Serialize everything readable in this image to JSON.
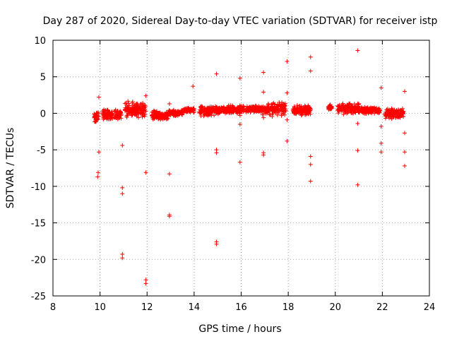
{
  "chart_data": {
    "type": "scatter",
    "title": "Day 287 of 2020, Sidereal Day-to-day VTEC variation (SDTVAR) for receiver istp",
    "xlabel": "GPS time / hours",
    "ylabel": "SDTVAR / TECUs",
    "xlim": [
      8,
      24
    ],
    "ylim": [
      -25,
      10
    ],
    "xticks": [
      8,
      10,
      12,
      14,
      16,
      18,
      20,
      22,
      24
    ],
    "yticks": [
      -25,
      -20,
      -15,
      -10,
      -5,
      0,
      5,
      10
    ],
    "xtick_labels": [
      "8",
      "10",
      "12",
      "14",
      "16",
      "18",
      "20",
      "22",
      "24"
    ],
    "ytick_labels": [
      "-25",
      "-20",
      "-15",
      "-10",
      "-5",
      "0",
      "5",
      "10"
    ],
    "grid": true,
    "marker": "plus",
    "color": "#ff0000",
    "clusters": [
      {
        "x0": 9.75,
        "x1": 9.95,
        "ymin": -1.2,
        "ymax": 0.2
      },
      {
        "x0": 10.1,
        "x1": 10.9,
        "ymin": -1.0,
        "ymax": 0.6
      },
      {
        "x0": 11.05,
        "x1": 11.95,
        "ymin": -0.6,
        "ymax": 1.8
      },
      {
        "x0": 12.2,
        "x1": 12.9,
        "ymin": -1.0,
        "ymax": 0.5
      },
      {
        "x0": 12.9,
        "x1": 13.5,
        "ymin": -0.4,
        "ymax": 0.5
      },
      {
        "x0": 13.5,
        "x1": 14.0,
        "ymin": 0.1,
        "ymax": 0.8
      },
      {
        "x0": 14.2,
        "x1": 15.1,
        "ymin": -0.4,
        "ymax": 1.0
      },
      {
        "x0": 15.1,
        "x1": 16.1,
        "ymin": -0.1,
        "ymax": 1.2
      },
      {
        "x0": 16.2,
        "x1": 16.9,
        "ymin": 0.0,
        "ymax": 1.1
      },
      {
        "x0": 16.9,
        "x1": 17.1,
        "ymin": -0.3,
        "ymax": 1.0
      },
      {
        "x0": 17.1,
        "x1": 17.9,
        "ymin": -0.5,
        "ymax": 1.6
      },
      {
        "x0": 18.2,
        "x1": 18.95,
        "ymin": -0.5,
        "ymax": 1.2
      },
      {
        "x0": 19.7,
        "x1": 19.85,
        "ymin": 0.2,
        "ymax": 1.3
      },
      {
        "x0": 20.1,
        "x1": 21.0,
        "ymin": -0.2,
        "ymax": 1.4
      },
      {
        "x0": 21.0,
        "x1": 21.9,
        "ymin": -0.1,
        "ymax": 0.9
      },
      {
        "x0": 22.1,
        "x1": 22.9,
        "ymin": -0.8,
        "ymax": 0.8
      }
    ],
    "points": [
      {
        "x": 9.95,
        "y": 2.2
      },
      {
        "x": 9.95,
        "y": -5.3
      },
      {
        "x": 9.92,
        "y": -8.1
      },
      {
        "x": 9.9,
        "y": -8.7
      },
      {
        "x": 10.95,
        "y": -4.4
      },
      {
        "x": 10.95,
        "y": -10.2
      },
      {
        "x": 10.95,
        "y": -11.0
      },
      {
        "x": 10.95,
        "y": -19.3
      },
      {
        "x": 10.95,
        "y": -19.8
      },
      {
        "x": 11.95,
        "y": 2.4
      },
      {
        "x": 11.95,
        "y": -8.1
      },
      {
        "x": 11.95,
        "y": -22.8
      },
      {
        "x": 11.95,
        "y": -23.3
      },
      {
        "x": 12.95,
        "y": 1.3
      },
      {
        "x": 12.95,
        "y": -8.3
      },
      {
        "x": 12.95,
        "y": -13.9
      },
      {
        "x": 12.95,
        "y": -14.1
      },
      {
        "x": 13.95,
        "y": 3.7
      },
      {
        "x": 14.95,
        "y": 5.4
      },
      {
        "x": 14.95,
        "y": -5.0
      },
      {
        "x": 14.95,
        "y": -5.4
      },
      {
        "x": 14.95,
        "y": -17.6
      },
      {
        "x": 14.95,
        "y": -17.9
      },
      {
        "x": 15.95,
        "y": 4.8
      },
      {
        "x": 15.95,
        "y": -0.3
      },
      {
        "x": 15.95,
        "y": -1.5
      },
      {
        "x": 15.95,
        "y": -6.7
      },
      {
        "x": 16.95,
        "y": 5.6
      },
      {
        "x": 16.95,
        "y": 2.9
      },
      {
        "x": 16.95,
        "y": -0.6
      },
      {
        "x": 16.95,
        "y": -5.4
      },
      {
        "x": 16.95,
        "y": -5.7
      },
      {
        "x": 17.95,
        "y": 7.1
      },
      {
        "x": 17.95,
        "y": 2.8
      },
      {
        "x": 17.95,
        "y": -0.9
      },
      {
        "x": 17.95,
        "y": -3.8
      },
      {
        "x": 18.95,
        "y": 7.7
      },
      {
        "x": 18.95,
        "y": 5.8
      },
      {
        "x": 18.95,
        "y": -5.9
      },
      {
        "x": 18.95,
        "y": -7.0
      },
      {
        "x": 18.95,
        "y": -9.3
      },
      {
        "x": 20.95,
        "y": 8.6
      },
      {
        "x": 20.95,
        "y": -1.4
      },
      {
        "x": 20.95,
        "y": -5.1
      },
      {
        "x": 20.95,
        "y": -9.8
      },
      {
        "x": 21.95,
        "y": 3.5
      },
      {
        "x": 21.95,
        "y": -1.8
      },
      {
        "x": 21.95,
        "y": -4.1
      },
      {
        "x": 21.95,
        "y": -5.3
      },
      {
        "x": 22.95,
        "y": 3.0
      },
      {
        "x": 22.95,
        "y": -2.7
      },
      {
        "x": 22.95,
        "y": -5.3
      },
      {
        "x": 22.95,
        "y": -7.2
      }
    ]
  }
}
